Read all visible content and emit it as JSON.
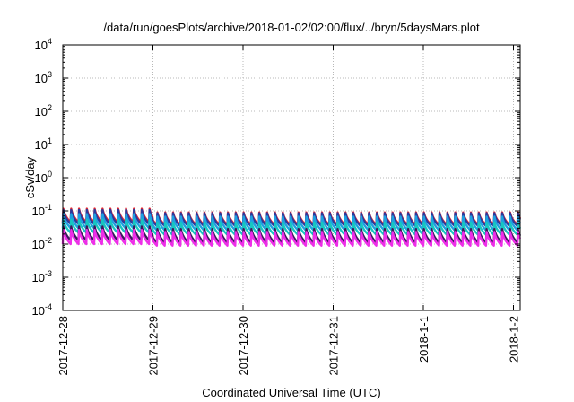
{
  "chart_data": {
    "type": "line",
    "title": "/data/run/goesPlots/archive/2018-01-02/02:00/flux/../bryn/5daysMars.plot",
    "xlabel": "Coordinated Universal Time (UTC)",
    "ylabel": "cSv/day",
    "y_scale": "log",
    "ylim": [
      0.0001,
      10000
    ],
    "y_ticks": [
      {
        "base": "10",
        "exp": "4",
        "value": 10000
      },
      {
        "base": "10",
        "exp": "3",
        "value": 1000
      },
      {
        "base": "10",
        "exp": "2",
        "value": 100
      },
      {
        "base": "10",
        "exp": "1",
        "value": 10
      },
      {
        "base": "10",
        "exp": "0",
        "value": 1
      },
      {
        "base": "10",
        "exp": "-1",
        "value": 0.1
      },
      {
        "base": "10",
        "exp": "-2",
        "value": 0.01
      },
      {
        "base": "10",
        "exp": "-3",
        "value": 0.001
      },
      {
        "base": "10",
        "exp": "-4",
        "value": 0.0001
      }
    ],
    "x_ticks": [
      "2017-12-28",
      "2017-12-29",
      "2017-12-30",
      "2017-12-31",
      "2018-1-1",
      "2018-1-2"
    ],
    "xlim": [
      "2017-12-28",
      "2018-01-02 02:00"
    ],
    "grid": true,
    "legend": "none",
    "cycles_per_day": 11.5,
    "series": [
      {
        "color": "#e8262e",
        "peak_before_2017-12-29": 0.13,
        "trough_before_2017-12-29": 0.045,
        "peak": 0.1,
        "trough": 0.038
      },
      {
        "color": "#2b3a9c",
        "peak_before_2017-12-29": 0.12,
        "trough_before_2017-12-29": 0.04,
        "peak": 0.095,
        "trough": 0.035
      },
      {
        "color": "#1ea0e0",
        "peak_before_2017-12-29": 0.09,
        "trough_before_2017-12-29": 0.03,
        "peak": 0.075,
        "trough": 0.026
      },
      {
        "color": "#17c6c0",
        "peak_before_2017-12-29": 0.06,
        "trough_before_2017-12-29": 0.022,
        "peak": 0.05,
        "trough": 0.019
      },
      {
        "color": "#3a1a5c",
        "peak_before_2017-12-29": 0.038,
        "trough_before_2017-12-29": 0.013,
        "peak": 0.032,
        "trough": 0.011
      },
      {
        "color": "#ee2ee8",
        "peak_before_2017-12-29": 0.03,
        "trough_before_2017-12-29": 0.01,
        "peak": 0.026,
        "trough": 0.009
      }
    ]
  }
}
